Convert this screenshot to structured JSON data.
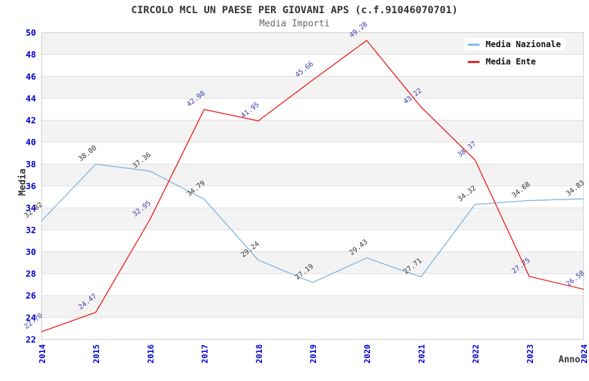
{
  "chart_data": {
    "type": "line",
    "title": "CIRCOLO MCL UN PAESE PER GIOVANI APS (c.f.91046070701)",
    "subtitle": "Media Importi",
    "xlabel": "Anno",
    "ylabel": "Media",
    "x": [
      "2014",
      "2015",
      "2016",
      "2017",
      "2018",
      "2019",
      "2020",
      "2021",
      "2022",
      "2023",
      "2024"
    ],
    "series": [
      {
        "name": "Media Nazionale",
        "color": "#85b7e4",
        "label_color": "#333333",
        "values": [
          32.82,
          38.0,
          37.36,
          34.79,
          29.24,
          27.19,
          29.43,
          27.71,
          34.32,
          34.68,
          34.83
        ]
      },
      {
        "name": "Media Ente",
        "color": "#ee2121",
        "label_color": "#3a3aae",
        "values": [
          22.7,
          24.47,
          32.95,
          42.98,
          41.95,
          45.66,
          49.28,
          43.22,
          38.37,
          27.75,
          26.58
        ]
      }
    ],
    "ylim": [
      22,
      50
    ],
    "ytick_step": 2,
    "value_label_decimals": 2,
    "grid": "horizontal gridlines at every 2 units with alternating shaded bands",
    "legend_position": "top-right",
    "axis_tick_color": "#0000cc",
    "band_shaded_color": "#f3f3f3",
    "band_plain_color": "#ffffff",
    "gridline_color": "#e0e0e0",
    "plot_border_color": "#c9c9c9"
  }
}
